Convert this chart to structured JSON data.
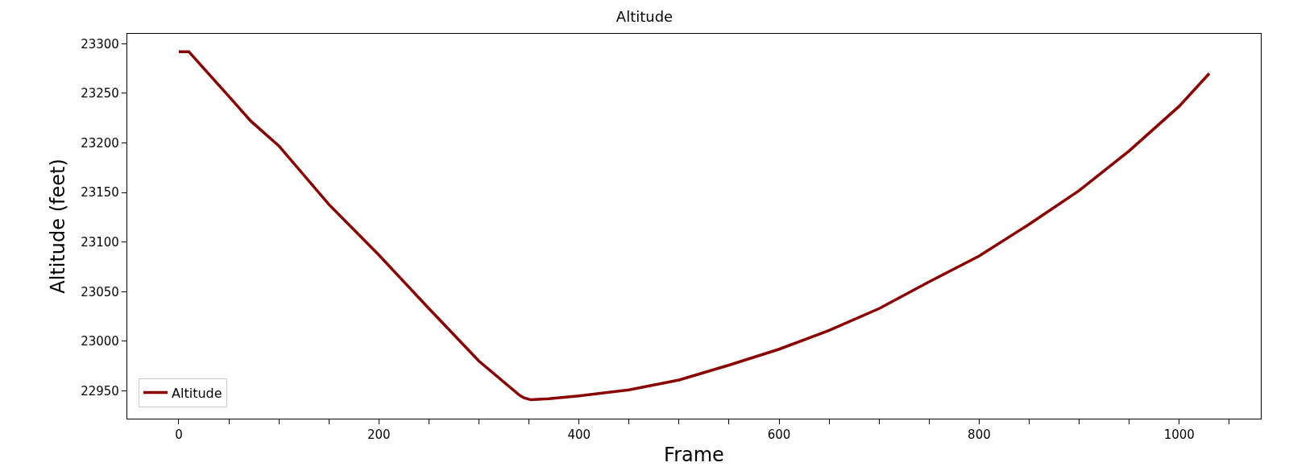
{
  "chart_data": {
    "type": "line",
    "title": "Altitude",
    "xlabel": "Frame",
    "ylabel": "Altitude (feet)",
    "x": [
      0,
      10,
      50,
      72,
      100,
      150,
      200,
      250,
      300,
      340,
      345,
      352,
      370,
      400,
      450,
      500,
      550,
      600,
      650,
      700,
      750,
      800,
      850,
      900,
      950,
      1000,
      1030
    ],
    "series": [
      {
        "name": "Altitude",
        "color": "#8b0000",
        "values": [
          23292,
          23292,
          23247,
          23222,
          23197,
          23138,
          23087,
          23033,
          22980,
          22946,
          22943,
          22941,
          22942,
          22945,
          22951,
          22961,
          22976,
          22992,
          23011,
          23033,
          23060,
          23086,
          23118,
          23152,
          23192,
          23237,
          23270
        ]
      }
    ],
    "xlim": [
      -51.5,
      1081.5
    ],
    "xticks": [
      0,
      {
        "value": 50,
        "label": null
      },
      {
        "value": 100,
        "label": null
      },
      {
        "value": 150,
        "label": null
      },
      200,
      {
        "value": 250,
        "label": null
      },
      {
        "value": 300,
        "label": null
      },
      {
        "value": 350,
        "label": null
      },
      400,
      {
        "value": 450,
        "label": null
      },
      {
        "value": 500,
        "label": null
      },
      {
        "value": 550,
        "label": null
      },
      600,
      {
        "value": 650,
        "label": null
      },
      {
        "value": 700,
        "label": null
      },
      {
        "value": 750,
        "label": null
      },
      800,
      {
        "value": 850,
        "label": null
      },
      {
        "value": 900,
        "label": null
      },
      {
        "value": 950,
        "label": null
      },
      1000,
      {
        "value": 1050,
        "label": null
      }
    ],
    "ylim": [
      22922,
      23310
    ],
    "yticks": [
      22950,
      23000,
      23050,
      23100,
      23150,
      23200,
      23250,
      23300
    ],
    "grid": false,
    "legend": "bottom left",
    "marker": "none",
    "line_style": "solid"
  }
}
